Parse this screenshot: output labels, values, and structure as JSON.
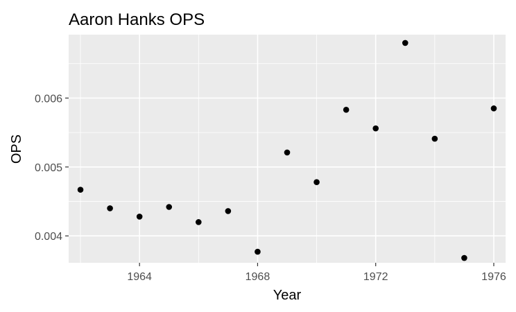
{
  "chart_data": {
    "type": "scatter",
    "title": "Aaron Hanks OPS",
    "xlabel": "Year",
    "ylabel": "OPS",
    "xlim": [
      1961.6,
      1976.4
    ],
    "ylim": [
      0.00361,
      0.00692
    ],
    "x_ticks": [
      1964,
      1968,
      1972,
      1976
    ],
    "y_ticks": [
      0.004,
      0.005,
      0.006
    ],
    "y_tick_labels": [
      "0.004",
      "0.005",
      "0.006"
    ],
    "grid": true,
    "background": "#EBEBEB",
    "grid_color": "#FFFFFF",
    "point_color": "#000000",
    "x": [
      1962,
      1963,
      1964,
      1965,
      1966,
      1967,
      1968,
      1969,
      1970,
      1971,
      1972,
      1973,
      1974,
      1975,
      1976
    ],
    "y": [
      0.00467,
      0.0044,
      0.00428,
      0.00442,
      0.0042,
      0.00436,
      0.00377,
      0.00521,
      0.00478,
      0.00583,
      0.00556,
      0.0068,
      0.00541,
      0.00368,
      0.00585
    ]
  }
}
